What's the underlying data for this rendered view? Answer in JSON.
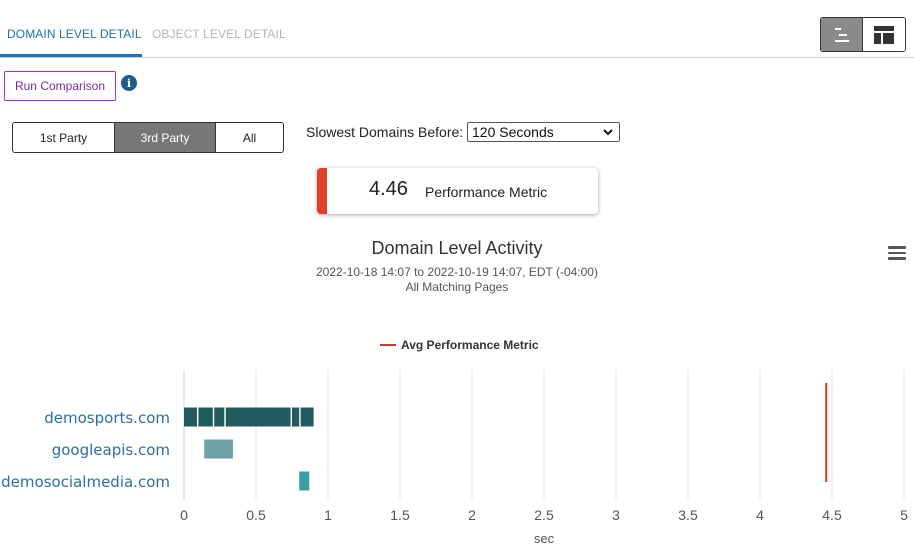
{
  "tabs": [
    {
      "label": "DOMAIN LEVEL DETAIL",
      "active": true
    },
    {
      "label": "OBJECT LEVEL DETAIL",
      "active": false
    }
  ],
  "view_toggle": {
    "options": [
      "waterfall-icon",
      "layout-icon"
    ],
    "selected": 0
  },
  "run_comparison": {
    "label": "Run Comparison"
  },
  "party_filter": {
    "options": [
      "1st Party",
      "3rd Party",
      "All"
    ],
    "selected": "3rd Party"
  },
  "slowest": {
    "label": "Slowest Domains Before:",
    "value": "120 Seconds"
  },
  "metric": {
    "value": "4.46",
    "label": "Performance Metric"
  },
  "chart_header": {
    "title": "Domain Level Activity",
    "subtitle": "2022-10-18 14:07 to 2022-10-19 14:07, EDT (-04:00)",
    "scope": "All Matching Pages"
  },
  "chart_data": {
    "type": "bar",
    "orientation": "horizontal-range",
    "categories": [
      "demosports.com",
      "googleapis.com",
      "demosocialmedia.com"
    ],
    "series": [
      {
        "category": "demosports.com",
        "segments": [
          [
            0.0,
            0.09
          ],
          [
            0.1,
            0.2
          ],
          [
            0.21,
            0.28
          ],
          [
            0.29,
            0.74
          ],
          [
            0.75,
            0.8
          ],
          [
            0.81,
            0.9
          ]
        ],
        "color": "#1f5b5e"
      },
      {
        "category": "googleapis.com",
        "segments": [
          [
            0.14,
            0.34
          ]
        ],
        "color": "#6ea4a8"
      },
      {
        "category": "demosocialmedia.com",
        "segments": [
          [
            0.8,
            0.87
          ]
        ],
        "color": "#3a9ea6"
      }
    ],
    "reference_line": {
      "name": "Avg Performance Metric",
      "value": 4.46,
      "color": "#d03a2a"
    },
    "xlabel": "sec",
    "xlim": [
      0,
      5
    ],
    "xticks": [
      "0",
      "0.5",
      "1",
      "1.5",
      "2",
      "2.5",
      "3",
      "3.5",
      "4",
      "4.5",
      "5"
    ],
    "grid": true,
    "legend": "top-center"
  }
}
